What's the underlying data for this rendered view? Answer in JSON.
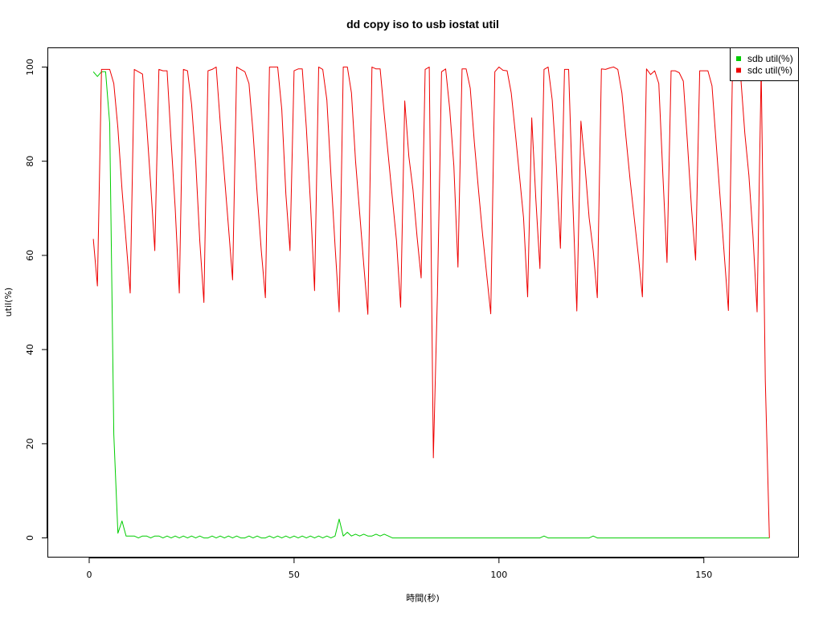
{
  "chart_data": {
    "type": "line",
    "title": "dd copy iso to usb iostat util",
    "xlabel": "時間(秒)",
    "ylabel": "util(%)",
    "xlim": [
      -10,
      173
    ],
    "ylim": [
      -4,
      104
    ],
    "x_ticks": [
      0,
      50,
      100,
      150
    ],
    "y_ticks": [
      0,
      20,
      40,
      60,
      80,
      100
    ],
    "x_tick_labels": [
      "0",
      "50",
      "100",
      "150"
    ],
    "y_tick_labels": [
      "0",
      "20",
      "40",
      "60",
      "80",
      "100"
    ],
    "grid": false,
    "legend_position": "top-right",
    "series": [
      {
        "name": "sdb util(%)",
        "color": "#00cd00",
        "points": [
          [
            1,
            99
          ],
          [
            2,
            98
          ],
          [
            3,
            99
          ],
          [
            4,
            99
          ],
          [
            5,
            88
          ],
          [
            6,
            22
          ],
          [
            7,
            1
          ],
          [
            8,
            3.6
          ],
          [
            9,
            0.4
          ],
          [
            10,
            0.4
          ],
          [
            11,
            0.4
          ],
          [
            12,
            0
          ],
          [
            13,
            0.4
          ],
          [
            14,
            0.4
          ],
          [
            15,
            0
          ],
          [
            16,
            0.4
          ],
          [
            17,
            0.4
          ],
          [
            18,
            0
          ],
          [
            19,
            0.4
          ],
          [
            20,
            0
          ],
          [
            21,
            0.4
          ],
          [
            22,
            0
          ],
          [
            23,
            0.4
          ],
          [
            24,
            0
          ],
          [
            25,
            0.4
          ],
          [
            26,
            0
          ],
          [
            27,
            0.4
          ],
          [
            28,
            0
          ],
          [
            29,
            0
          ],
          [
            30,
            0.4
          ],
          [
            31,
            0
          ],
          [
            32,
            0.4
          ],
          [
            33,
            0
          ],
          [
            34,
            0.4
          ],
          [
            35,
            0
          ],
          [
            36,
            0.4
          ],
          [
            37,
            0
          ],
          [
            38,
            0
          ],
          [
            39,
            0.4
          ],
          [
            40,
            0
          ],
          [
            41,
            0.4
          ],
          [
            42,
            0
          ],
          [
            43,
            0
          ],
          [
            44,
            0.4
          ],
          [
            45,
            0
          ],
          [
            46,
            0.4
          ],
          [
            47,
            0
          ],
          [
            48,
            0.4
          ],
          [
            49,
            0
          ],
          [
            50,
            0.4
          ],
          [
            51,
            0
          ],
          [
            52,
            0.4
          ],
          [
            53,
            0
          ],
          [
            54,
            0.4
          ],
          [
            55,
            0
          ],
          [
            56,
            0.4
          ],
          [
            57,
            0
          ],
          [
            58,
            0.4
          ],
          [
            59,
            0
          ],
          [
            60,
            0.4
          ],
          [
            61,
            4
          ],
          [
            62,
            0.4
          ],
          [
            63,
            1.2
          ],
          [
            64,
            0.4
          ],
          [
            65,
            0.8
          ],
          [
            66,
            0.4
          ],
          [
            67,
            0.8
          ],
          [
            68,
            0.4
          ],
          [
            69,
            0.4
          ],
          [
            70,
            0.8
          ],
          [
            71,
            0.4
          ],
          [
            72,
            0.8
          ],
          [
            73,
            0.4
          ],
          [
            74,
            0
          ],
          [
            75,
            0
          ],
          [
            80,
            0
          ],
          [
            90,
            0
          ],
          [
            100,
            0
          ],
          [
            110,
            0
          ],
          [
            111,
            0.4
          ],
          [
            112,
            0
          ],
          [
            120,
            0
          ],
          [
            122,
            0
          ],
          [
            123,
            0.4
          ],
          [
            124,
            0
          ],
          [
            130,
            0
          ],
          [
            140,
            0
          ],
          [
            150,
            0
          ],
          [
            160,
            0
          ],
          [
            166,
            0
          ]
        ]
      },
      {
        "name": "sdc util(%)",
        "color": "#ee0000",
        "points": [
          [
            1,
            63.5
          ],
          [
            2,
            53.5
          ],
          [
            3,
            99.5
          ],
          [
            4,
            99.5
          ],
          [
            5,
            99.5
          ],
          [
            6,
            96.5
          ],
          [
            7,
            87
          ],
          [
            8,
            74
          ],
          [
            9,
            63
          ],
          [
            10,
            52
          ],
          [
            11,
            99.5
          ],
          [
            12,
            99
          ],
          [
            13,
            98.5
          ],
          [
            14,
            88
          ],
          [
            15,
            75
          ],
          [
            16,
            61
          ],
          [
            17,
            99.5
          ],
          [
            18,
            99.2
          ],
          [
            19,
            99.2
          ],
          [
            20,
            84
          ],
          [
            21,
            70
          ],
          [
            22,
            52
          ],
          [
            23,
            99.5
          ],
          [
            24,
            99.2
          ],
          [
            25,
            92
          ],
          [
            26,
            80
          ],
          [
            27,
            63
          ],
          [
            28,
            50
          ],
          [
            29,
            99.2
          ],
          [
            30,
            99.5
          ],
          [
            31,
            100
          ],
          [
            32,
            88
          ],
          [
            33,
            77
          ],
          [
            34,
            66
          ],
          [
            35,
            54.8
          ],
          [
            36,
            100
          ],
          [
            37,
            99.5
          ],
          [
            38,
            99
          ],
          [
            39,
            96.5
          ],
          [
            40,
            86
          ],
          [
            41,
            73
          ],
          [
            42,
            61
          ],
          [
            43,
            51
          ],
          [
            44,
            100
          ],
          [
            45,
            100
          ],
          [
            46,
            100
          ],
          [
            47,
            91
          ],
          [
            48,
            73
          ],
          [
            49,
            61
          ],
          [
            50,
            99.2
          ],
          [
            51,
            99.6
          ],
          [
            52,
            99.6
          ],
          [
            53,
            87
          ],
          [
            54,
            71
          ],
          [
            55,
            52.5
          ],
          [
            56,
            100
          ],
          [
            57,
            99.5
          ],
          [
            58,
            93
          ],
          [
            59,
            77
          ],
          [
            60,
            62
          ],
          [
            61,
            48
          ],
          [
            62,
            100
          ],
          [
            63,
            100
          ],
          [
            64,
            94.5
          ],
          [
            65,
            80
          ],
          [
            66,
            69
          ],
          [
            67,
            58
          ],
          [
            68,
            47.5
          ],
          [
            69,
            100
          ],
          [
            70,
            99.6
          ],
          [
            71,
            99.6
          ],
          [
            72,
            90
          ],
          [
            73,
            81
          ],
          [
            74,
            72
          ],
          [
            75,
            63
          ],
          [
            76,
            49
          ],
          [
            77,
            92.8
          ],
          [
            78,
            81
          ],
          [
            79,
            74
          ],
          [
            80,
            64
          ],
          [
            81,
            55.2
          ],
          [
            82,
            99.5
          ],
          [
            83,
            100
          ],
          [
            84,
            17
          ],
          [
            85,
            52
          ],
          [
            86,
            99
          ],
          [
            87,
            99.6
          ],
          [
            88,
            91
          ],
          [
            89,
            79
          ],
          [
            90,
            57.5
          ],
          [
            91,
            99.6
          ],
          [
            92,
            99.6
          ],
          [
            93,
            95.5
          ],
          [
            94,
            84
          ],
          [
            95,
            74
          ],
          [
            96,
            64.5
          ],
          [
            97,
            56
          ],
          [
            98,
            47.6
          ],
          [
            99,
            99
          ],
          [
            100,
            100
          ],
          [
            101,
            99.3
          ],
          [
            102,
            99.2
          ],
          [
            103,
            94.5
          ],
          [
            104,
            86
          ],
          [
            105,
            77
          ],
          [
            106,
            68
          ],
          [
            107,
            51.2
          ],
          [
            108,
            89.2
          ],
          [
            109,
            72
          ],
          [
            110,
            57.2
          ],
          [
            111,
            99.5
          ],
          [
            112,
            100
          ],
          [
            113,
            93
          ],
          [
            114,
            79
          ],
          [
            115,
            61.5
          ],
          [
            116,
            99.5
          ],
          [
            117,
            99.5
          ],
          [
            118,
            72
          ],
          [
            119,
            48.2
          ],
          [
            120,
            88.5
          ],
          [
            121,
            79
          ],
          [
            122,
            68
          ],
          [
            123,
            61
          ],
          [
            124,
            51
          ],
          [
            125,
            99.6
          ],
          [
            126,
            99.5
          ],
          [
            127,
            99.8
          ],
          [
            128,
            100
          ],
          [
            129,
            99.5
          ],
          [
            130,
            94.5
          ],
          [
            131,
            85
          ],
          [
            132,
            76
          ],
          [
            133,
            68
          ],
          [
            134,
            60
          ],
          [
            135,
            51.2
          ],
          [
            136,
            99.6
          ],
          [
            137,
            98.4
          ],
          [
            138,
            99.2
          ],
          [
            139,
            96.5
          ],
          [
            140,
            77
          ],
          [
            141,
            58.5
          ],
          [
            142,
            99.2
          ],
          [
            143,
            99.2
          ],
          [
            144,
            98.8
          ],
          [
            145,
            97
          ],
          [
            146,
            84
          ],
          [
            147,
            70
          ],
          [
            148,
            59
          ],
          [
            149,
            99.2
          ],
          [
            150,
            99.2
          ],
          [
            151,
            99.2
          ],
          [
            152,
            96
          ],
          [
            153,
            84
          ],
          [
            154,
            72
          ],
          [
            155,
            60
          ],
          [
            156,
            48.3
          ],
          [
            157,
            99.6
          ],
          [
            158,
            99.6
          ],
          [
            159,
            98
          ],
          [
            160,
            86
          ],
          [
            161,
            77
          ],
          [
            162,
            64
          ],
          [
            163,
            48
          ],
          [
            164,
            99.6
          ],
          [
            165,
            33.5
          ],
          [
            166,
            0
          ]
        ]
      }
    ]
  }
}
